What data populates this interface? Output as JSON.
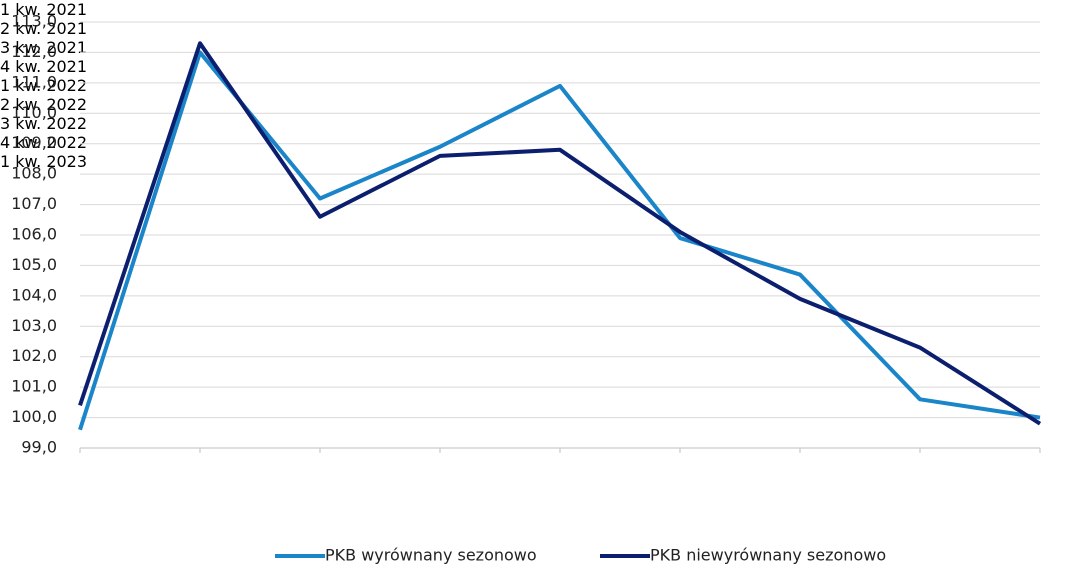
{
  "chart_data": {
    "type": "line",
    "categories": [
      "1 kw.\n2021",
      "2 kw.\n2021",
      "3 kw.\n2021",
      "4 kw.\n2021",
      "1 kw.\n2022",
      "2 kw.\n2022",
      "3 kw.\n2022",
      "4 kw.\n2022",
      "1 kw.\n2023"
    ],
    "series": [
      {
        "name": "PKB wyrównany sezonowo",
        "color": "#1a85c8",
        "values": [
          99.6,
          112.0,
          107.2,
          108.9,
          110.9,
          105.9,
          104.7,
          100.6,
          100.0
        ]
      },
      {
        "name": "PKB niewyrównany sezonowo",
        "color": "#0b1f6e",
        "values": [
          100.4,
          112.3,
          106.6,
          108.6,
          108.8,
          106.1,
          103.9,
          102.3,
          99.8
        ]
      }
    ],
    "ylim": [
      99,
      113
    ],
    "yticks": [
      {
        "value": 99,
        "label": "99,0"
      },
      {
        "value": 100,
        "label": "100,0"
      },
      {
        "value": 101,
        "label": "101,0"
      },
      {
        "value": 102,
        "label": "102,0"
      },
      {
        "value": 103,
        "label": "103,0"
      },
      {
        "value": 104,
        "label": "104,0"
      },
      {
        "value": 105,
        "label": "105,0"
      },
      {
        "value": 106,
        "label": "106,0"
      },
      {
        "value": 107,
        "label": "107,0"
      },
      {
        "value": 108,
        "label": "108,0"
      },
      {
        "value": 109,
        "label": "109,0"
      },
      {
        "value": 110,
        "label": "110,0"
      },
      {
        "value": 111,
        "label": "111,0"
      },
      {
        "value": 112,
        "label": "112,0"
      },
      {
        "value": 113,
        "label": "113,0"
      }
    ],
    "grid": true,
    "legend": "bottom"
  }
}
